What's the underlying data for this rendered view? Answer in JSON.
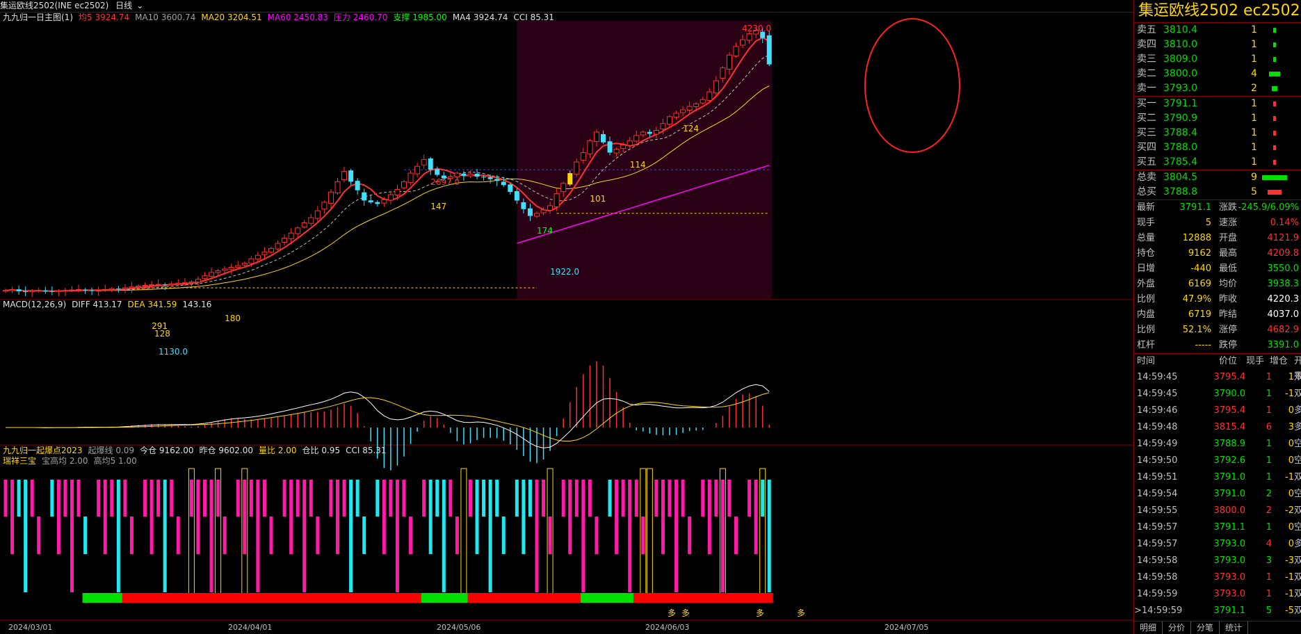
{
  "window": {
    "title": "集运欧线2502(INE ec2502)",
    "period": "日线"
  },
  "legend_main": [
    {
      "text": "九九归一日主图(1)",
      "color": "#e0e0e0"
    },
    {
      "text": "均5 3924.74",
      "color": "#ff3030"
    },
    {
      "text": "MA10 3600.74",
      "color": "#a0a0a0"
    },
    {
      "text": "MA20 3204.51",
      "color": "#ffd700"
    },
    {
      "text": "MA60 2450.83",
      "color": "#ff00ff"
    },
    {
      "text": "压力 2460.70",
      "color": "#ff00ff"
    },
    {
      "text": "支撑 1985.00",
      "color": "#00ff00"
    },
    {
      "text": "MA4 3924.74",
      "color": "#e0e0e0"
    },
    {
      "text": "CCI 85.31",
      "color": "#e0e0e0"
    }
  ],
  "legend_macd": [
    {
      "text": "MACD(12,26,9)",
      "color": "#e0e0e0"
    },
    {
      "text": "DIFF 413.17",
      "color": "#e0e0e0"
    },
    {
      "text": "DEA 341.59",
      "color": "#ffd700"
    },
    {
      "text": "143.16",
      "color": "#e0e0e0"
    }
  ],
  "legend_ind1": [
    {
      "text": "九九归一起爆点2023",
      "color": "#ffd700"
    },
    {
      "text": "起爆线 0.09",
      "color": "#a0a0a0"
    },
    {
      "text": "今仓 9162.00",
      "color": "#e0e0e0"
    },
    {
      "text": "昨仓 9602.00",
      "color": "#e0e0e0"
    },
    {
      "text": "量比 2.00",
      "color": "#ffd700"
    },
    {
      "text": "仓比 0.95",
      "color": "#e0e0e0"
    },
    {
      "text": "CCI 85.31",
      "color": "#e0e0e0"
    }
  ],
  "legend_ind2": [
    {
      "text": "瑞祥三宝",
      "color": "#ffd700"
    },
    {
      "text": "宝高均 2.00",
      "color": "#a0a0a0"
    },
    {
      "text": "高均5 1.00",
      "color": "#a0a0a0"
    }
  ],
  "chart_data": {
    "type": "candlestick",
    "x_labels": [
      "2024/03/01",
      "2024/04/01",
      "2024/05/06",
      "2024/06/03",
      "2024/07/05"
    ],
    "price_annotations": [
      {
        "text": "4230.0",
        "color": "#ff3030"
      },
      {
        "text": "2697.0",
        "color": "#ff3030"
      },
      {
        "text": "1922.0",
        "color": "#40e0ff"
      },
      {
        "text": "1130.0",
        "color": "#40e0ff"
      },
      {
        "text": "128",
        "color": "#ffd700"
      },
      {
        "text": "291",
        "color": "#ffd700"
      },
      {
        "text": "180",
        "color": "#ffd700"
      },
      {
        "text": "147",
        "color": "#ffd700"
      },
      {
        "text": "174",
        "color": "#00ff00"
      },
      {
        "text": "101",
        "color": "#ffd700"
      },
      {
        "text": "114",
        "color": "#ffd700"
      },
      {
        "text": "124",
        "color": "#ffd700"
      }
    ],
    "signal_labels": [
      "多",
      "多",
      "多",
      "多"
    ],
    "closes": [
      1150,
      1160,
      1140,
      1135,
      1145,
      1150,
      1140,
      1135,
      1145,
      1150,
      1155,
      1160,
      1150,
      1145,
      1150,
      1160,
      1170,
      1165,
      1180,
      1190,
      1200,
      1210,
      1215,
      1220,
      1215,
      1225,
      1235,
      1240,
      1250,
      1280,
      1320,
      1360,
      1380,
      1400,
      1420,
      1440,
      1470,
      1520,
      1560,
      1600,
      1640,
      1700,
      1760,
      1820,
      1880,
      1940,
      2000,
      2080,
      2180,
      2300,
      2420,
      2540,
      2420,
      2320,
      2200,
      2180,
      2160,
      2210,
      2270,
      2330,
      2420,
      2520,
      2600,
      2680,
      2560,
      2500,
      2460,
      2480,
      2520,
      2490,
      2510,
      2480,
      2470,
      2450,
      2430,
      2380,
      2300,
      2200,
      2100,
      2020,
      2050,
      2090,
      2140,
      2280,
      2400,
      2520,
      2650,
      2760,
      2900,
      3000,
      2880,
      2760,
      2800,
      2850,
      2900,
      2960,
      3000,
      2980,
      3020,
      3100,
      3180,
      3220,
      3260,
      3300,
      3330,
      3380,
      3470,
      3600,
      3750,
      3900,
      4000,
      4080,
      4150,
      4190,
      4100,
      3791
    ],
    "y_range": [
      1050,
      4300
    ]
  },
  "order_book": {
    "title": "集运欧线2502 ec2502",
    "asks": [
      {
        "label": "卖五",
        "price": "3810.4",
        "vol": "1",
        "bar": 1
      },
      {
        "label": "卖四",
        "price": "3810.0",
        "vol": "1",
        "bar": 1
      },
      {
        "label": "卖三",
        "price": "3809.0",
        "vol": "1",
        "bar": 1
      },
      {
        "label": "卖二",
        "price": "3800.0",
        "vol": "4",
        "bar": 4
      },
      {
        "label": "卖一",
        "price": "3793.0",
        "vol": "2",
        "bar": 2
      }
    ],
    "bids": [
      {
        "label": "买一",
        "price": "3791.1",
        "vol": "1",
        "bar": 1
      },
      {
        "label": "买二",
        "price": "3790.9",
        "vol": "1",
        "bar": 1
      },
      {
        "label": "买三",
        "price": "3788.4",
        "vol": "1",
        "bar": 1
      },
      {
        "label": "买四",
        "price": "3788.0",
        "vol": "1",
        "bar": 1
      },
      {
        "label": "买五",
        "price": "3785.4",
        "vol": "1",
        "bar": 1
      }
    ],
    "totals": [
      {
        "label": "总卖",
        "price": "3804.5",
        "vol": "9",
        "bar": 9,
        "color": "#00e000"
      },
      {
        "label": "总买",
        "price": "3788.8",
        "vol": "5",
        "bar": 5,
        "color": "#ff3030"
      }
    ]
  },
  "quote": [
    {
      "k": "最新",
      "v": "3791.1",
      "vc": "#00e000",
      "k2": "涨跌",
      "v2": "-245.9/6.09%",
      "v2c": "#00e000"
    },
    {
      "k": "现手",
      "v": "5",
      "vc": "#ffd700",
      "k2": "速涨",
      "v2": "0.14%",
      "v2c": "#ff3030"
    },
    {
      "k": "总量",
      "v": "12888",
      "vc": "#ffd700",
      "k2": "开盘",
      "v2": "4121.9",
      "v2c": "#ff3030"
    },
    {
      "k": "持仓",
      "v": "9162",
      "vc": "#ffd700",
      "k2": "最高",
      "v2": "4209.8",
      "v2c": "#ff3030"
    },
    {
      "k": "日增",
      "v": "-440",
      "vc": "#ffd700",
      "k2": "最低",
      "v2": "3550.0",
      "v2c": "#00e000"
    },
    {
      "k": "外盘",
      "v": "6169",
      "vc": "#ffd700",
      "k2": "均价",
      "v2": "3938.3",
      "v2c": "#00e000"
    },
    {
      "k": "比例",
      "v": "47.9%",
      "vc": "#ffd700",
      "k2": "昨收",
      "v2": "4220.3",
      "v2c": "#ffffff"
    },
    {
      "k": "内盘",
      "v": "6719",
      "vc": "#ffd700",
      "k2": "昨结",
      "v2": "4037.0",
      "v2c": "#ffffff"
    },
    {
      "k": "比例",
      "v": "52.1%",
      "vc": "#ffd700",
      "k2": "涨停",
      "v2": "4682.9",
      "v2c": "#ff3030"
    },
    {
      "k": "杠杆",
      "v": "-----",
      "vc": "#ffd700",
      "k2": "跌停",
      "v2": "3391.0",
      "v2c": "#00e000"
    }
  ],
  "ticks_header": [
    "时间",
    "价位",
    "现手",
    "增仓",
    "开平"
  ],
  "ticks": [
    {
      "time": "14:59:45",
      "price": "3795.4",
      "pc": "#ff3030",
      "vol": "1",
      "vc": "#ff3030",
      "oi": "1",
      "type": "双开"
    },
    {
      "time": "14:59:45",
      "price": "3790.0",
      "pc": "#00e000",
      "vol": "1",
      "vc": "#00e000",
      "oi": "-1",
      "type": "双平"
    },
    {
      "time": "14:59:46",
      "price": "3795.4",
      "pc": "#ff3030",
      "vol": "1",
      "vc": "#ff3030",
      "oi": "0",
      "type": "多换"
    },
    {
      "time": "14:59:48",
      "price": "3815.4",
      "pc": "#ff3030",
      "vol": "6",
      "vc": "#ff3030",
      "oi": "3",
      "type": "多开"
    },
    {
      "time": "14:59:49",
      "price": "3788.9",
      "pc": "#00e000",
      "vol": "1",
      "vc": "#00e000",
      "oi": "0",
      "type": "空换"
    },
    {
      "time": "14:59:50",
      "price": "3792.6",
      "pc": "#00e000",
      "vol": "1",
      "vc": "#00e000",
      "oi": "0",
      "type": "空换"
    },
    {
      "time": "14:59:51",
      "price": "3791.0",
      "pc": "#00e000",
      "vol": "1",
      "vc": "#00e000",
      "oi": "-1",
      "type": "双平"
    },
    {
      "time": "14:59:54",
      "price": "3791.0",
      "pc": "#00e000",
      "vol": "2",
      "vc": "#00e000",
      "oi": "0",
      "type": "空换"
    },
    {
      "time": "14:59:55",
      "price": "3800.0",
      "pc": "#ff3030",
      "vol": "2",
      "vc": "#ff3030",
      "oi": "-2",
      "type": "双平"
    },
    {
      "time": "14:59:57",
      "price": "3791.1",
      "pc": "#00e000",
      "vol": "1",
      "vc": "#00e000",
      "oi": "0",
      "type": "空换"
    },
    {
      "time": "14:59:57",
      "price": "3793.0",
      "pc": "#00e000",
      "vol": "4",
      "vc": "#ff3030",
      "oi": "0",
      "type": "多换"
    },
    {
      "time": "14:59:58",
      "price": "3793.0",
      "pc": "#00e000",
      "vol": "3",
      "vc": "#00e000",
      "oi": "-3",
      "type": "双平"
    },
    {
      "time": "14:59:58",
      "price": "3793.0",
      "pc": "#ff3030",
      "vol": "1",
      "vc": "#ff3030",
      "oi": "-1",
      "type": "双平"
    },
    {
      "time": "14:59:59",
      "price": "3793.0",
      "pc": "#ff3030",
      "vol": "1",
      "vc": "#ff3030",
      "oi": "-1",
      "type": "双平"
    },
    {
      "time": "14:59:59",
      "price": "3791.1",
      "pc": "#00e000",
      "vol": "5",
      "vc": "#00e000",
      "oi": "-5",
      "type": "双平"
    }
  ],
  "tick_marker": ">",
  "tabs": [
    "明细",
    "分价",
    "分笔",
    "统计"
  ],
  "colors": {
    "up": "#ff3030",
    "down": "#40e0ff",
    "ma5": "#ff3030",
    "ma20": "#ffd700",
    "ma60": "#ff00ff",
    "highlight_bg": "#2a0014",
    "magenta": "#ff1aa8",
    "cyan": "#20e8f0"
  }
}
